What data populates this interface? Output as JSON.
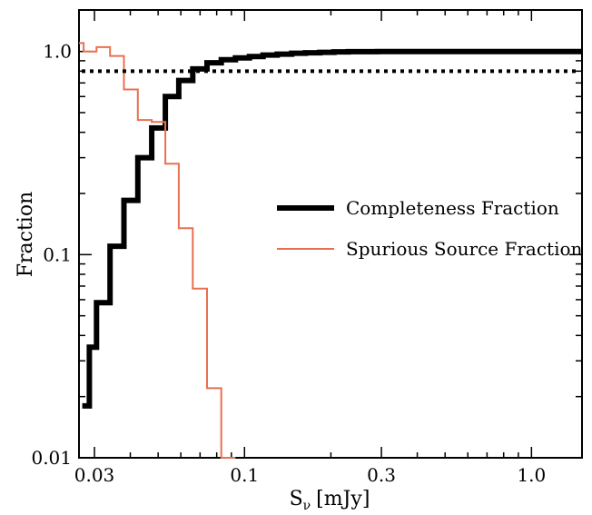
{
  "chart_data": {
    "type": "line",
    "xlabel_main": "S",
    "xlabel_sub": "ν",
    "xlabel_unit": "[mJy]",
    "ylabel": "Fraction",
    "x_scale": "log",
    "y_scale": "log",
    "xlim": [
      0.0265,
      1.5
    ],
    "ylim": [
      0.01,
      1.6
    ],
    "x_ticks": [
      {
        "value": 0.03,
        "label": "0.03"
      },
      {
        "value": 0.1,
        "label": "0.1"
      },
      {
        "value": 0.3,
        "label": "0.3"
      },
      {
        "value": 1.0,
        "label": "1.0"
      }
    ],
    "y_ticks": [
      {
        "value": 0.01,
        "label": "0.01"
      },
      {
        "value": 0.1,
        "label": "0.1"
      },
      {
        "value": 1.0,
        "label": "1.0"
      }
    ],
    "legend_position": "center-right",
    "series": [
      {
        "name": "Completeness Fraction",
        "color": "#000000",
        "style": "thick-step",
        "edges": [
          0.0272,
          0.0288,
          0.0305,
          0.034,
          0.038,
          0.0425,
          0.0475,
          0.053,
          0.059,
          0.066,
          0.074,
          0.083,
          0.093,
          0.104,
          0.116,
          0.13,
          0.146,
          0.163,
          0.183,
          0.205,
          0.23,
          0.26,
          0.29,
          0.33,
          0.37,
          0.41,
          1.5
        ],
        "values": [
          0.018,
          0.035,
          0.058,
          0.11,
          0.185,
          0.3,
          0.42,
          0.6,
          0.72,
          0.82,
          0.88,
          0.91,
          0.93,
          0.945,
          0.96,
          0.97,
          0.98,
          0.985,
          0.99,
          0.995,
          0.997,
          0.998,
          0.999,
          1.0,
          1.0,
          1.0
        ]
      },
      {
        "name": "Spurious Source Fraction",
        "color": "#e8704f",
        "style": "thin-step",
        "edges": [
          0.0265,
          0.0275,
          0.029,
          0.0305,
          0.034,
          0.038,
          0.0425,
          0.0475,
          0.053,
          0.059,
          0.066,
          0.074,
          0.083,
          0.093
        ],
        "values": [
          1.1,
          1.0,
          1.0,
          1.05,
          0.95,
          0.65,
          0.46,
          0.45,
          0.28,
          0.135,
          0.068,
          0.022,
          0.0095
        ]
      },
      {
        "name": "",
        "color": "#000000",
        "style": "dotted-reference",
        "y_value": 0.8
      }
    ]
  }
}
